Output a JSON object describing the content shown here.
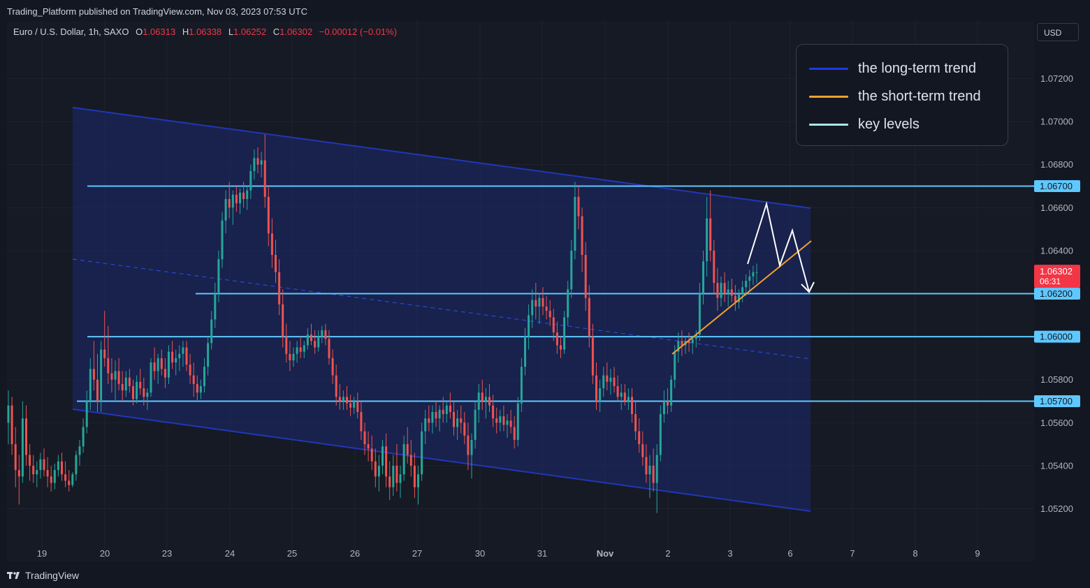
{
  "header": {
    "published": "Trading_Platform published on TradingView.com, Nov 03, 2023 07:53 UTC"
  },
  "symbol_line": {
    "symbol": "Euro / U.S. Dollar, 1h, SAXO",
    "o_label": "O",
    "o_value": "1.06313",
    "h_label": "H",
    "h_value": "1.06338",
    "l_label": "L",
    "l_value": "1.06252",
    "c_label": "C",
    "c_value": "1.06302",
    "change": "−0.00012 (−0.01%)"
  },
  "currency_button": "USD",
  "brand": "TradingView",
  "legend": [
    {
      "label": "the long-term trend",
      "color": "#1c3be0"
    },
    {
      "label": "the short-term trend",
      "color": "#f0a030"
    },
    {
      "label": "key levels",
      "color": "#a8e6ff"
    }
  ],
  "chart_data": {
    "type": "candlestick",
    "y_ticks": [
      "1.07200",
      "1.07000",
      "1.06800",
      "1.06600",
      "1.06400",
      "1.05800",
      "1.05600",
      "1.05400",
      "1.05200"
    ],
    "y_tick_values": [
      1.072,
      1.07,
      1.068,
      1.066,
      1.064,
      1.058,
      1.056,
      1.054,
      1.052
    ],
    "x_ticks": [
      "19",
      "20",
      "23",
      "24",
      "25",
      "26",
      "27",
      "30",
      "31",
      "Nov",
      "2",
      "3",
      "6",
      "7",
      "8",
      "9"
    ],
    "key_levels": [
      {
        "value": 1.067,
        "label": "1.06700"
      },
      {
        "value": 1.062,
        "label": "1.06200"
      },
      {
        "value": 1.06,
        "label": "1.06000"
      },
      {
        "value": 1.057,
        "label": "1.05700"
      }
    ],
    "last_price": {
      "value": 1.06302,
      "label": "1.06302",
      "countdown": "06:31"
    },
    "candles": [
      [
        1.056,
        1.0575,
        1.055,
        1.0568
      ],
      [
        1.0568,
        1.0572,
        1.0545,
        1.055
      ],
      [
        1.055,
        1.0558,
        1.053,
        1.0538
      ],
      [
        1.0538,
        1.0545,
        1.0522,
        1.0535
      ],
      [
        1.0535,
        1.057,
        1.0532,
        1.0562
      ],
      [
        1.0562,
        1.0568,
        1.054,
        1.0545
      ],
      [
        1.0545,
        1.055,
        1.0533,
        1.054
      ],
      [
        1.054,
        1.0545,
        1.0532,
        1.0536
      ],
      [
        1.0536,
        1.0542,
        1.053,
        1.0538
      ],
      [
        1.0538,
        1.0546,
        1.0534,
        1.0543
      ],
      [
        1.0543,
        1.0548,
        1.0535,
        1.0538
      ],
      [
        1.0538,
        1.0544,
        1.053,
        1.0535
      ],
      [
        1.0535,
        1.054,
        1.0528,
        1.0532
      ],
      [
        1.0532,
        1.0541,
        1.0529,
        1.0538
      ],
      [
        1.0538,
        1.0545,
        1.0535,
        1.0542
      ],
      [
        1.0542,
        1.0546,
        1.0533,
        1.0536
      ],
      [
        1.0536,
        1.0542,
        1.053,
        1.0533
      ],
      [
        1.0533,
        1.0538,
        1.0528,
        1.0531
      ],
      [
        1.0531,
        1.0537,
        1.053,
        1.0536
      ],
      [
        1.0536,
        1.0547,
        1.0533,
        1.0545
      ],
      [
        1.0545,
        1.0552,
        1.054,
        1.0549
      ],
      [
        1.0549,
        1.0562,
        1.0546,
        1.0558
      ],
      [
        1.0558,
        1.0575,
        1.0555,
        1.057
      ],
      [
        1.057,
        1.059,
        1.0566,
        1.0585
      ],
      [
        1.0585,
        1.0598,
        1.0575,
        1.058
      ],
      [
        1.058,
        1.0592,
        1.0565,
        1.057
      ],
      [
        1.057,
        1.0598,
        1.0565,
        1.0594
      ],
      [
        1.0594,
        1.0612,
        1.0586,
        1.059
      ],
      [
        1.059,
        1.0605,
        1.0578,
        1.0583
      ],
      [
        1.0583,
        1.059,
        1.0574,
        1.058
      ],
      [
        1.058,
        1.0589,
        1.057,
        1.0584
      ],
      [
        1.0584,
        1.059,
        1.0575,
        1.0578
      ],
      [
        1.0578,
        1.0584,
        1.057,
        1.0575
      ],
      [
        1.0575,
        1.0584,
        1.0572,
        1.0581
      ],
      [
        1.0581,
        1.0585,
        1.0574,
        1.0577
      ],
      [
        1.0577,
        1.058,
        1.0568,
        1.0571
      ],
      [
        1.0571,
        1.0582,
        1.0569,
        1.0579
      ],
      [
        1.0579,
        1.0585,
        1.0573,
        1.0576
      ],
      [
        1.0576,
        1.0581,
        1.0568,
        1.0572
      ],
      [
        1.0572,
        1.0576,
        1.0566,
        1.0574
      ],
      [
        1.0574,
        1.059,
        1.0572,
        1.0588
      ],
      [
        1.0588,
        1.0595,
        1.058,
        1.0584
      ],
      [
        1.0584,
        1.0592,
        1.0578,
        1.059
      ],
      [
        1.059,
        1.0594,
        1.0582,
        1.0585
      ],
      [
        1.0585,
        1.059,
        1.0576,
        1.0581
      ],
      [
        1.0581,
        1.0596,
        1.0578,
        1.0593
      ],
      [
        1.0593,
        1.0598,
        1.0585,
        1.0588
      ],
      [
        1.0588,
        1.0594,
        1.0582,
        1.059
      ],
      [
        1.059,
        1.0596,
        1.0584,
        1.0592
      ],
      [
        1.0592,
        1.0598,
        1.0586,
        1.0595
      ],
      [
        1.0595,
        1.0598,
        1.0584,
        1.0587
      ],
      [
        1.0587,
        1.0592,
        1.0578,
        1.0582
      ],
      [
        1.0582,
        1.0588,
        1.0572,
        1.0578
      ],
      [
        1.0578,
        1.0582,
        1.057,
        1.0574
      ],
      [
        1.0574,
        1.058,
        1.0571,
        1.0577
      ],
      [
        1.0577,
        1.059,
        1.0574,
        1.0586
      ],
      [
        1.0586,
        1.06,
        1.0582,
        1.0597
      ],
      [
        1.0597,
        1.0612,
        1.0594,
        1.0608
      ],
      [
        1.0608,
        1.0625,
        1.0604,
        1.062
      ],
      [
        1.062,
        1.064,
        1.0616,
        1.0636
      ],
      [
        1.0636,
        1.0658,
        1.0632,
        1.0654
      ],
      [
        1.0654,
        1.0668,
        1.0648,
        1.0664
      ],
      [
        1.0664,
        1.0672,
        1.0655,
        1.066
      ],
      [
        1.066,
        1.0668,
        1.0652,
        1.0666
      ],
      [
        1.0666,
        1.067,
        1.0658,
        1.0662
      ],
      [
        1.0662,
        1.0669,
        1.0657,
        1.0667
      ],
      [
        1.0667,
        1.0672,
        1.066,
        1.0664
      ],
      [
        1.0664,
        1.067,
        1.0659,
        1.0668
      ],
      [
        1.0668,
        1.068,
        1.0664,
        1.0677
      ],
      [
        1.0677,
        1.0687,
        1.0673,
        1.0683
      ],
      [
        1.0683,
        1.0688,
        1.0676,
        1.068
      ],
      [
        1.068,
        1.0686,
        1.0674,
        1.0682
      ],
      [
        1.0682,
        1.0694,
        1.066,
        1.0665
      ],
      [
        1.0665,
        1.067,
        1.0642,
        1.0648
      ],
      [
        1.0648,
        1.0655,
        1.0632,
        1.0638
      ],
      [
        1.0638,
        1.0645,
        1.0625,
        1.063
      ],
      [
        1.063,
        1.0636,
        1.061,
        1.0615
      ],
      [
        1.0615,
        1.0622,
        1.0595,
        1.06
      ],
      [
        1.06,
        1.0606,
        1.0588,
        1.0592
      ],
      [
        1.0592,
        1.0598,
        1.0584,
        1.0589
      ],
      [
        1.0589,
        1.0595,
        1.0586,
        1.0592
      ],
      [
        1.0592,
        1.0598,
        1.0588,
        1.0595
      ],
      [
        1.0595,
        1.06,
        1.059,
        1.0593
      ],
      [
        1.0593,
        1.0598,
        1.059,
        1.0596
      ],
      [
        1.0596,
        1.0604,
        1.0594,
        1.0601
      ],
      [
        1.0601,
        1.0606,
        1.0596,
        1.0598
      ],
      [
        1.0598,
        1.0603,
        1.0592,
        1.0595
      ],
      [
        1.0595,
        1.0603,
        1.0593,
        1.06
      ],
      [
        1.06,
        1.0605,
        1.0597,
        1.0603
      ],
      [
        1.0603,
        1.0606,
        1.0596,
        1.0599
      ],
      [
        1.0599,
        1.0603,
        1.0587,
        1.059
      ],
      [
        1.059,
        1.0594,
        1.0578,
        1.0582
      ],
      [
        1.0582,
        1.0587,
        1.0568,
        1.0572
      ],
      [
        1.0572,
        1.0578,
        1.0566,
        1.057
      ],
      [
        1.057,
        1.0575,
        1.0566,
        1.0572
      ],
      [
        1.0572,
        1.0577,
        1.0566,
        1.0569
      ],
      [
        1.0569,
        1.0573,
        1.0563,
        1.0567
      ],
      [
        1.0567,
        1.0572,
        1.0564,
        1.057
      ],
      [
        1.057,
        1.0574,
        1.0562,
        1.0565
      ],
      [
        1.0565,
        1.057,
        1.0552,
        1.0556
      ],
      [
        1.0556,
        1.056,
        1.0545,
        1.055
      ],
      [
        1.055,
        1.0556,
        1.0542,
        1.0548
      ],
      [
        1.0548,
        1.0554,
        1.0538,
        1.0542
      ],
      [
        1.0542,
        1.0548,
        1.053,
        1.0535
      ],
      [
        1.0535,
        1.0545,
        1.0528,
        1.054
      ],
      [
        1.054,
        1.0552,
        1.0536,
        1.0549
      ],
      [
        1.0549,
        1.0555,
        1.053,
        1.0535
      ],
      [
        1.0535,
        1.0542,
        1.0524,
        1.053
      ],
      [
        1.053,
        1.0545,
        1.0526,
        1.054
      ],
      [
        1.054,
        1.055,
        1.0528,
        1.0532
      ],
      [
        1.0532,
        1.054,
        1.0525,
        1.0536
      ],
      [
        1.0536,
        1.0554,
        1.0533,
        1.055
      ],
      [
        1.055,
        1.0558,
        1.0541,
        1.0545
      ],
      [
        1.0545,
        1.0552,
        1.0535,
        1.054
      ],
      [
        1.054,
        1.0546,
        1.0525,
        1.053
      ],
      [
        1.053,
        1.054,
        1.0522,
        1.0536
      ],
      [
        1.0536,
        1.056,
        1.0533,
        1.0556
      ],
      [
        1.0556,
        1.0566,
        1.055,
        1.0562
      ],
      [
        1.0562,
        1.0568,
        1.0556,
        1.056
      ],
      [
        1.056,
        1.0568,
        1.0555,
        1.0565
      ],
      [
        1.0565,
        1.057,
        1.0558,
        1.0562
      ],
      [
        1.0562,
        1.0568,
        1.0556,
        1.0566
      ],
      [
        1.0566,
        1.0572,
        1.056,
        1.0564
      ],
      [
        1.0564,
        1.057,
        1.056,
        1.0568
      ],
      [
        1.0568,
        1.0574,
        1.0562,
        1.0565
      ],
      [
        1.0565,
        1.057,
        1.0554,
        1.0558
      ],
      [
        1.0558,
        1.0566,
        1.0552,
        1.0562
      ],
      [
        1.0562,
        1.0568,
        1.0555,
        1.056
      ],
      [
        1.056,
        1.0565,
        1.055,
        1.0554
      ],
      [
        1.0554,
        1.056,
        1.0538,
        1.0545
      ],
      [
        1.0545,
        1.0555,
        1.0534,
        1.0552
      ],
      [
        1.0552,
        1.057,
        1.0548,
        1.0566
      ],
      [
        1.0566,
        1.0578,
        1.056,
        1.0574
      ],
      [
        1.0574,
        1.058,
        1.0566,
        1.057
      ],
      [
        1.057,
        1.0576,
        1.0562,
        1.0572
      ],
      [
        1.0572,
        1.0578,
        1.0565,
        1.0568
      ],
      [
        1.0568,
        1.0573,
        1.0558,
        1.0562
      ],
      [
        1.0562,
        1.0567,
        1.0555,
        1.056
      ],
      [
        1.056,
        1.0566,
        1.0556,
        1.0563
      ],
      [
        1.0563,
        1.0568,
        1.0556,
        1.0559
      ],
      [
        1.0559,
        1.0564,
        1.0553,
        1.0561
      ],
      [
        1.0561,
        1.0566,
        1.0555,
        1.0558
      ],
      [
        1.0558,
        1.0563,
        1.0548,
        1.0552
      ],
      [
        1.0552,
        1.0572,
        1.0549,
        1.0569
      ],
      [
        1.0569,
        1.059,
        1.0565,
        1.0586
      ],
      [
        1.0586,
        1.0604,
        1.0582,
        1.06
      ],
      [
        1.06,
        1.0615,
        1.0594,
        1.061
      ],
      [
        1.061,
        1.0622,
        1.0604,
        1.0617
      ],
      [
        1.0617,
        1.0625,
        1.0608,
        1.0614
      ],
      [
        1.0614,
        1.062,
        1.0606,
        1.0618
      ],
      [
        1.0618,
        1.0623,
        1.061,
        1.0614
      ],
      [
        1.0614,
        1.0619,
        1.0608,
        1.0612
      ],
      [
        1.0612,
        1.0617,
        1.0605,
        1.0609
      ],
      [
        1.0609,
        1.0613,
        1.0598,
        1.0602
      ],
      [
        1.0602,
        1.0607,
        1.0592,
        1.0596
      ],
      [
        1.0596,
        1.06,
        1.059,
        1.0594
      ],
      [
        1.0594,
        1.0612,
        1.0592,
        1.0609
      ],
      [
        1.0609,
        1.0626,
        1.0605,
        1.0622
      ],
      [
        1.0622,
        1.0645,
        1.0618,
        1.064
      ],
      [
        1.064,
        1.0672,
        1.0636,
        1.0665
      ],
      [
        1.0665,
        1.067,
        1.065,
        1.0656
      ],
      [
        1.0656,
        1.066,
        1.063,
        1.0638
      ],
      [
        1.0638,
        1.0644,
        1.0612,
        1.0618
      ],
      [
        1.0618,
        1.0624,
        1.0595,
        1.06
      ],
      [
        1.06,
        1.0606,
        1.0578,
        1.0582
      ],
      [
        1.0582,
        1.0588,
        1.0566,
        1.057
      ],
      [
        1.057,
        1.058,
        1.0565,
        1.0576
      ],
      [
        1.0576,
        1.0586,
        1.0572,
        1.0582
      ],
      [
        1.0582,
        1.0588,
        1.0575,
        1.0579
      ],
      [
        1.0579,
        1.0585,
        1.0573,
        1.0581
      ],
      [
        1.0581,
        1.0586,
        1.0574,
        1.0577
      ],
      [
        1.0577,
        1.0582,
        1.057,
        1.0572
      ],
      [
        1.0572,
        1.0578,
        1.0566,
        1.0574
      ],
      [
        1.0574,
        1.0578,
        1.0568,
        1.057
      ],
      [
        1.057,
        1.0576,
        1.0566,
        1.0572
      ],
      [
        1.0572,
        1.0576,
        1.056,
        1.0564
      ],
      [
        1.0564,
        1.057,
        1.0552,
        1.0556
      ],
      [
        1.0556,
        1.0562,
        1.0546,
        1.055
      ],
      [
        1.055,
        1.0556,
        1.054,
        1.0544
      ],
      [
        1.0544,
        1.055,
        1.0532,
        1.0536
      ],
      [
        1.0536,
        1.0545,
        1.0525,
        1.054
      ],
      [
        1.054,
        1.0548,
        1.0528,
        1.0532
      ],
      [
        1.0532,
        1.055,
        1.0518,
        1.0545
      ],
      [
        1.0545,
        1.0568,
        1.0542,
        1.0564
      ],
      [
        1.0564,
        1.0575,
        1.056,
        1.057
      ],
      [
        1.057,
        1.0576,
        1.0564,
        1.0568
      ],
      [
        1.0568,
        1.0582,
        1.0565,
        1.058
      ],
      [
        1.058,
        1.0596,
        1.0576,
        1.0593
      ],
      [
        1.0593,
        1.0602,
        1.0588,
        1.0598
      ],
      [
        1.0598,
        1.0603,
        1.0591,
        1.0596
      ],
      [
        1.0596,
        1.06,
        1.0592,
        1.0598
      ],
      [
        1.0598,
        1.0602,
        1.0593,
        1.0597
      ],
      [
        1.0597,
        1.06,
        1.0592,
        1.0599
      ],
      [
        1.0599,
        1.0603,
        1.0595,
        1.0601
      ],
      [
        1.0601,
        1.0625,
        1.0598,
        1.062
      ],
      [
        1.062,
        1.064,
        1.0615,
        1.0635
      ],
      [
        1.0635,
        1.0665,
        1.0628,
        1.0655
      ],
      [
        1.0655,
        1.0668,
        1.0635,
        1.064
      ],
      [
        1.064,
        1.0645,
        1.062,
        1.0625
      ],
      [
        1.0625,
        1.0632,
        1.0612,
        1.0618
      ],
      [
        1.0618,
        1.0628,
        1.0614,
        1.0625
      ],
      [
        1.0625,
        1.063,
        1.0616,
        1.062
      ],
      [
        1.062,
        1.0626,
        1.0614,
        1.0622
      ],
      [
        1.0622,
        1.0627,
        1.0616,
        1.0619
      ],
      [
        1.0619,
        1.0624,
        1.0612,
        1.0616
      ],
      [
        1.0616,
        1.0622,
        1.0613,
        1.062
      ],
      [
        1.062,
        1.0626,
        1.0616,
        1.0623
      ],
      [
        1.0623,
        1.0629,
        1.0619,
        1.0626
      ],
      [
        1.0626,
        1.0631,
        1.0621,
        1.0628
      ],
      [
        1.0628,
        1.0633,
        1.0624,
        1.063
      ],
      [
        1.063,
        1.0634,
        1.0625,
        1.063
      ]
    ]
  }
}
